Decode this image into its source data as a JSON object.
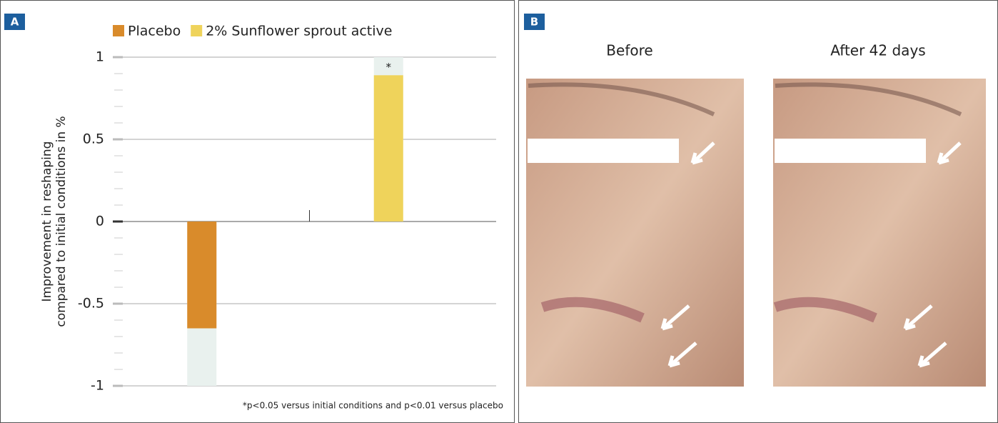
{
  "chart_data": {
    "type": "bar",
    "y_label": [
      "Improvement in reshaping",
      "compared to initial conditions in %"
    ],
    "categories": [
      null,
      null
    ],
    "series": [
      {
        "name": "Placebo",
        "color": "#d98b2b",
        "values": [
          -0.65,
          null
        ]
      },
      {
        "name": "2% Sunflower sprout active",
        "color": "#efd35b",
        "values": [
          null,
          0.89
        ]
      }
    ],
    "ylim": [
      -1,
      1
    ],
    "yticks": [
      -1,
      -0.5,
      0,
      0.5,
      1
    ],
    "minor_yticks": [
      -0.9,
      -0.8,
      -0.7,
      -0.6,
      -0.4,
      -0.3,
      -0.2,
      -0.1,
      0.1,
      0.2,
      0.3,
      0.4,
      0.6,
      0.7,
      0.8,
      0.9
    ],
    "grid": true,
    "legend": "top",
    "annotations": [
      "*"
    ],
    "footnote": "*p<0.05 versus initial conditions and p<0.01 versus placebo"
  },
  "panel_labels": [
    "A",
    "B"
  ],
  "photos": {
    "titles": [
      "Before",
      "After 42 days"
    ]
  }
}
